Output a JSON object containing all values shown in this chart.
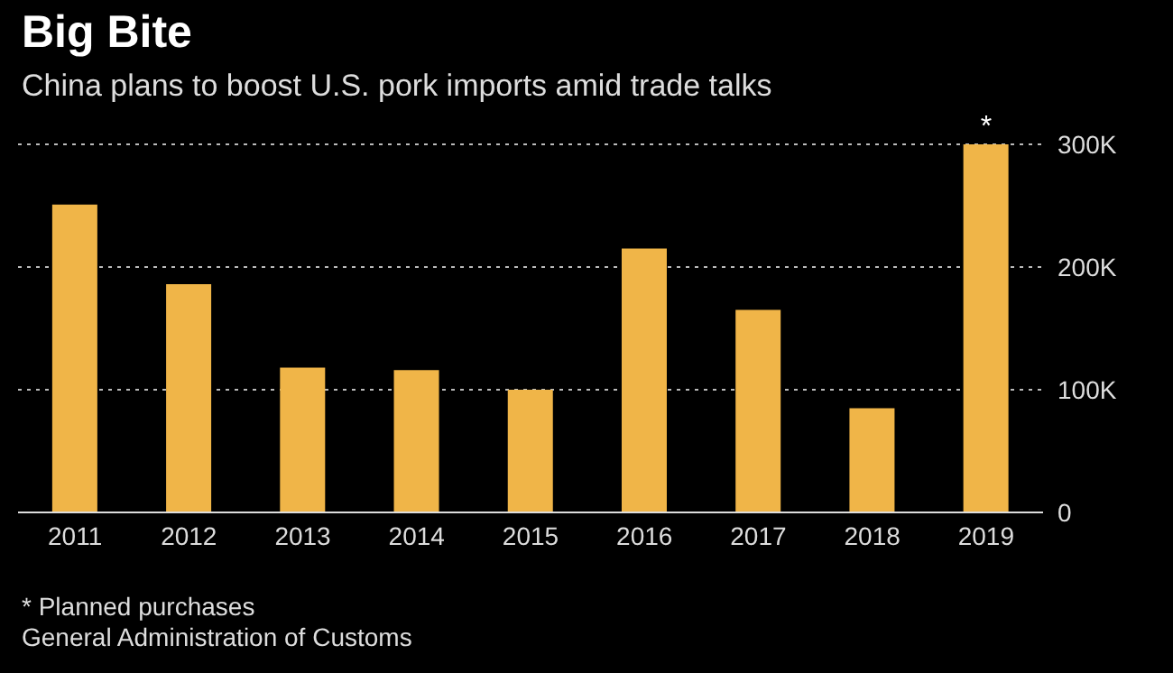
{
  "chart_data": {
    "type": "bar",
    "title": "Big Bite",
    "subtitle": "China plans to boost U.S. pork imports amid trade talks",
    "categories": [
      "2011",
      "2012",
      "2013",
      "2014",
      "2015",
      "2016",
      "2017",
      "2018",
      "2019"
    ],
    "values": [
      251000,
      186000,
      118000,
      116000,
      100000,
      215000,
      165000,
      85000,
      300000
    ],
    "color": "#f0b548",
    "ylim": [
      0,
      300000
    ],
    "yticks": [
      {
        "value": 0,
        "label": "0"
      },
      {
        "value": 100000,
        "label": "100K"
      },
      {
        "value": 200000,
        "label": "200K"
      },
      {
        "value": 300000,
        "label": "300K"
      }
    ],
    "grid": "y",
    "annotations": [
      {
        "text": "*",
        "x": "2019",
        "y": 300000
      },
      "* Planned purchases",
      "General Administration of Customs"
    ]
  }
}
